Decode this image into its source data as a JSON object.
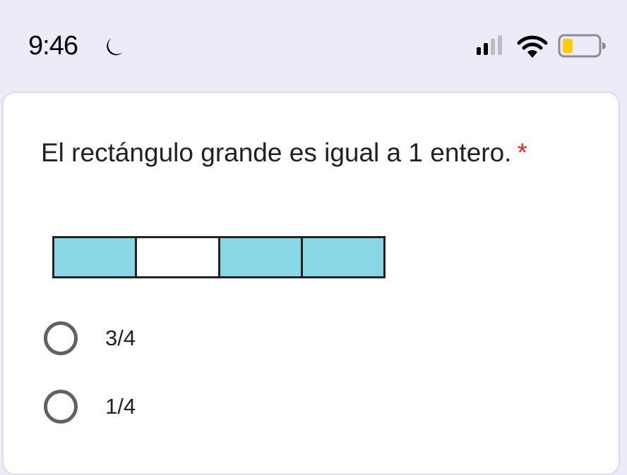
{
  "status_bar": {
    "time": "9:46",
    "icons": [
      "moon-icon",
      "cellular-signal-icon",
      "wifi-icon",
      "battery-icon"
    ],
    "battery_color": "#ffcc00"
  },
  "question": {
    "text": "El rectángulo grande es igual a 1 entero.",
    "required_marker": "*",
    "required_color": "#d93025",
    "figure": {
      "segments": [
        {
          "shaded": true
        },
        {
          "shaded": false
        },
        {
          "shaded": true
        },
        {
          "shaded": true
        }
      ],
      "shade_color": "#89d6e6"
    },
    "options": [
      {
        "label": "3/4",
        "selected": false
      },
      {
        "label": "1/4",
        "selected": false
      }
    ]
  }
}
